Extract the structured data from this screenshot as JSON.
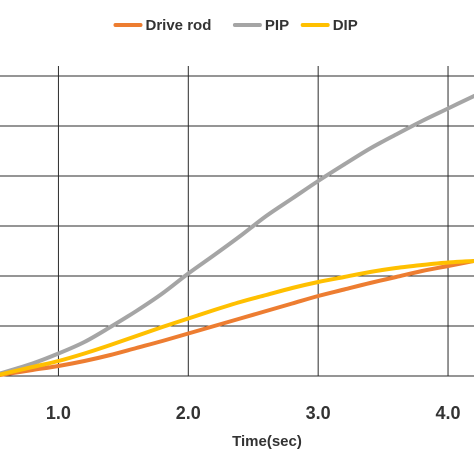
{
  "chart_data": {
    "type": "line",
    "title": "",
    "xlabel": "Time(sec)",
    "ylabel": "",
    "xlim": [
      0.55,
      4.2
    ],
    "x_ticks": [
      1.0,
      2.0,
      3.0,
      4.0
    ],
    "x_tick_labels": [
      "1.0",
      "2.0",
      "3.0",
      "4.0"
    ],
    "y_gridlines": [
      0,
      1,
      2,
      3,
      4,
      5,
      6
    ],
    "ylim": [
      0,
      6.2
    ],
    "grid": true,
    "legend_position": "top",
    "series": [
      {
        "name": "Drive rod",
        "color": "#ED7D31",
        "x": [
          0.55,
          0.8,
          1.0,
          1.2,
          1.4,
          1.6,
          1.8,
          2.0,
          2.2,
          2.4,
          2.6,
          2.8,
          3.0,
          3.2,
          3.4,
          3.6,
          3.8,
          4.0,
          4.2
        ],
        "y": [
          0.02,
          0.12,
          0.2,
          0.3,
          0.42,
          0.56,
          0.7,
          0.85,
          1.0,
          1.15,
          1.3,
          1.45,
          1.6,
          1.73,
          1.86,
          1.98,
          2.1,
          2.2,
          2.3
        ]
      },
      {
        "name": "PIP",
        "color": "#A5A5A5",
        "x": [
          0.55,
          0.8,
          1.0,
          1.2,
          1.4,
          1.6,
          1.8,
          2.0,
          2.2,
          2.4,
          2.6,
          2.8,
          3.0,
          3.2,
          3.4,
          3.6,
          3.8,
          4.0,
          4.2
        ],
        "y": [
          0.05,
          0.25,
          0.45,
          0.68,
          0.98,
          1.3,
          1.65,
          2.05,
          2.42,
          2.8,
          3.2,
          3.55,
          3.9,
          4.23,
          4.55,
          4.83,
          5.1,
          5.35,
          5.6
        ]
      },
      {
        "name": "DIP",
        "color": "#FFC000",
        "x": [
          0.55,
          0.8,
          1.0,
          1.2,
          1.4,
          1.6,
          1.8,
          2.0,
          2.2,
          2.4,
          2.6,
          2.8,
          3.0,
          3.2,
          3.4,
          3.6,
          3.8,
          4.0,
          4.2
        ],
        "y": [
          0.03,
          0.18,
          0.3,
          0.45,
          0.62,
          0.8,
          0.98,
          1.15,
          1.32,
          1.48,
          1.62,
          1.76,
          1.88,
          1.98,
          2.08,
          2.16,
          2.22,
          2.27,
          2.3
        ]
      }
    ]
  }
}
